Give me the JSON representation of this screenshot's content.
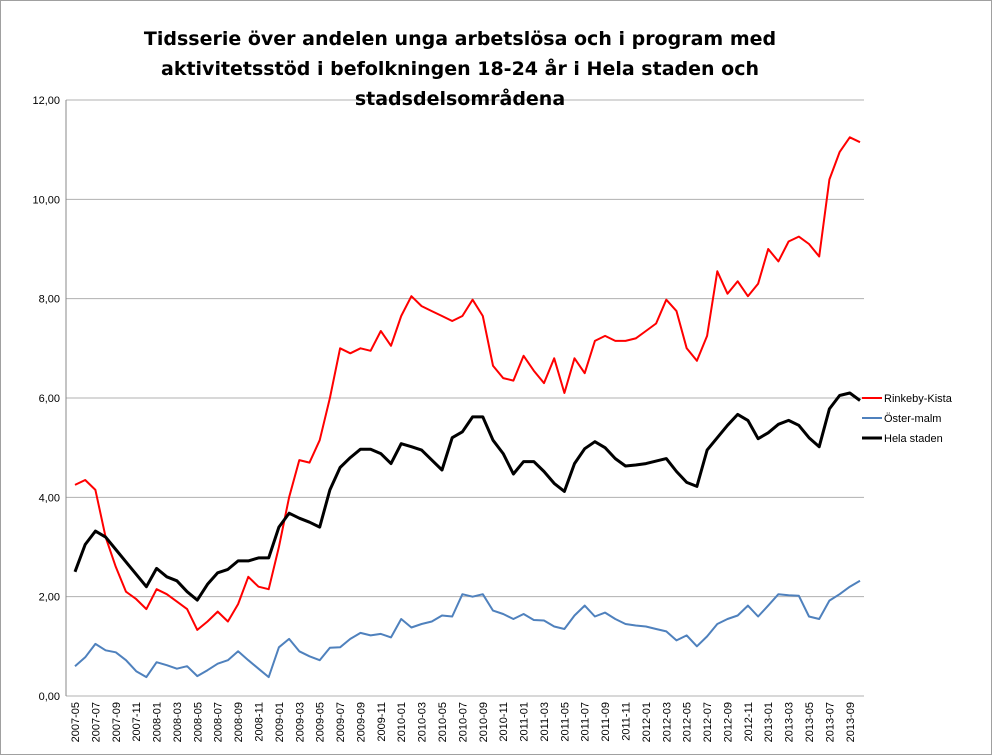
{
  "chart_data": {
    "type": "line",
    "title": "Tidsserie över andelen unga arbetslösa och i program med aktivitetsstöd i befolkningen 18-24 år i Hela staden och stadsdelsområdena",
    "categories": [
      "2007-05",
      null,
      "2007-07",
      null,
      "2007-09",
      null,
      "2007-11",
      null,
      "2008-01",
      null,
      "2008-03",
      null,
      "2008-05",
      null,
      "2008-07",
      null,
      "2008-09",
      null,
      "2008-11",
      null,
      "2009-01",
      null,
      "2009-03",
      null,
      "2009-05",
      null,
      "2009-07",
      null,
      "2009-09",
      null,
      "2009-11",
      null,
      "2010-01",
      null,
      "2010-03",
      null,
      "2010-05",
      null,
      "2010-07",
      null,
      "2010-09",
      null,
      "2010-11",
      null,
      "2011-01",
      null,
      "2011-03",
      null,
      "2011-05",
      null,
      "2011-07",
      null,
      "2011-09",
      null,
      "2011-11",
      null,
      "2012-01",
      null,
      "2012-03",
      null,
      "2012-05",
      null,
      "2012-07",
      null,
      "2012-09",
      null,
      "2012-11",
      null,
      "2013-01",
      null,
      "2013-03",
      null,
      "2013-05",
      null,
      "2013-07",
      null,
      "2013-09",
      null
    ],
    "series": [
      {
        "name": "Rinkeby-Kista",
        "color": "#ff0000",
        "width": 2,
        "values": [
          4.25,
          4.35,
          4.15,
          3.2,
          2.6,
          2.1,
          1.95,
          1.75,
          2.15,
          2.05,
          1.9,
          1.75,
          1.33,
          1.5,
          1.7,
          1.5,
          1.85,
          2.4,
          2.2,
          2.15,
          3.0,
          4.0,
          4.75,
          4.7,
          5.15,
          6.0,
          7.0,
          6.9,
          7.0,
          6.95,
          7.35,
          7.05,
          7.65,
          8.05,
          7.85,
          7.75,
          7.65,
          7.55,
          7.65,
          7.98,
          7.65,
          6.65,
          6.4,
          6.35,
          6.85,
          6.55,
          6.3,
          6.8,
          6.1,
          6.8,
          6.5,
          7.15,
          7.25,
          7.15,
          7.15,
          7.2,
          7.35,
          7.5,
          7.98,
          7.75,
          7.0,
          6.75,
          7.25,
          8.55,
          8.1,
          8.35,
          8.05,
          8.3,
          9.0,
          8.75,
          9.15,
          9.25,
          9.1,
          8.85,
          10.4,
          10.95,
          11.25,
          11.15
        ]
      },
      {
        "name": "Öster-malm",
        "color": "#4f81bd",
        "width": 2,
        "values": [
          0.6,
          0.78,
          1.05,
          0.92,
          0.88,
          0.72,
          0.5,
          0.38,
          0.68,
          0.62,
          0.55,
          0.6,
          0.4,
          0.52,
          0.65,
          0.72,
          0.9,
          0.72,
          0.55,
          0.38,
          0.98,
          1.15,
          0.9,
          0.8,
          0.72,
          0.97,
          0.98,
          1.15,
          1.27,
          1.22,
          1.25,
          1.18,
          1.55,
          1.38,
          1.45,
          1.5,
          1.62,
          1.6,
          2.05,
          2.0,
          2.05,
          1.72,
          1.65,
          1.55,
          1.65,
          1.53,
          1.52,
          1.4,
          1.35,
          1.62,
          1.82,
          1.6,
          1.68,
          1.55,
          1.45,
          1.42,
          1.4,
          1.35,
          1.3,
          1.12,
          1.22,
          1.0,
          1.2,
          1.45,
          1.55,
          1.62,
          1.82,
          1.6,
          1.82,
          2.05,
          2.03,
          2.02,
          1.6,
          1.55,
          1.92,
          2.05,
          2.2,
          2.32
        ]
      },
      {
        "name": "Hela staden",
        "color": "#000000",
        "width": 3,
        "values": [
          2.5,
          3.05,
          3.32,
          3.2,
          2.95,
          2.7,
          2.45,
          2.2,
          2.57,
          2.4,
          2.32,
          2.1,
          1.93,
          2.25,
          2.48,
          2.55,
          2.72,
          2.72,
          2.78,
          2.78,
          3.4,
          3.68,
          3.58,
          3.5,
          3.4,
          4.15,
          4.6,
          4.8,
          4.97,
          4.97,
          4.88,
          4.68,
          5.08,
          5.02,
          4.95,
          4.75,
          4.55,
          5.2,
          5.32,
          5.62,
          5.62,
          5.15,
          4.88,
          4.47,
          4.72,
          4.72,
          4.52,
          4.28,
          4.12,
          4.68,
          4.98,
          5.12,
          5.0,
          4.78,
          4.63,
          4.65,
          4.68,
          4.73,
          4.78,
          4.52,
          4.3,
          4.22,
          4.95,
          5.2,
          5.45,
          5.67,
          5.55,
          5.18,
          5.3,
          5.47,
          5.55,
          5.45,
          5.2,
          5.02,
          5.78,
          6.05,
          6.1,
          5.95
        ]
      }
    ],
    "ylim": [
      0,
      12
    ],
    "yticks": [
      {
        "value": 0,
        "label": "0,00"
      },
      {
        "value": 2,
        "label": "2,00"
      },
      {
        "value": 4,
        "label": "4,00"
      },
      {
        "value": 6,
        "label": "6,00"
      },
      {
        "value": 8,
        "label": "8,00"
      },
      {
        "value": 10,
        "label": "10,00"
      },
      {
        "value": 12,
        "label": "12,00"
      }
    ],
    "grid": true,
    "legend": "right"
  }
}
